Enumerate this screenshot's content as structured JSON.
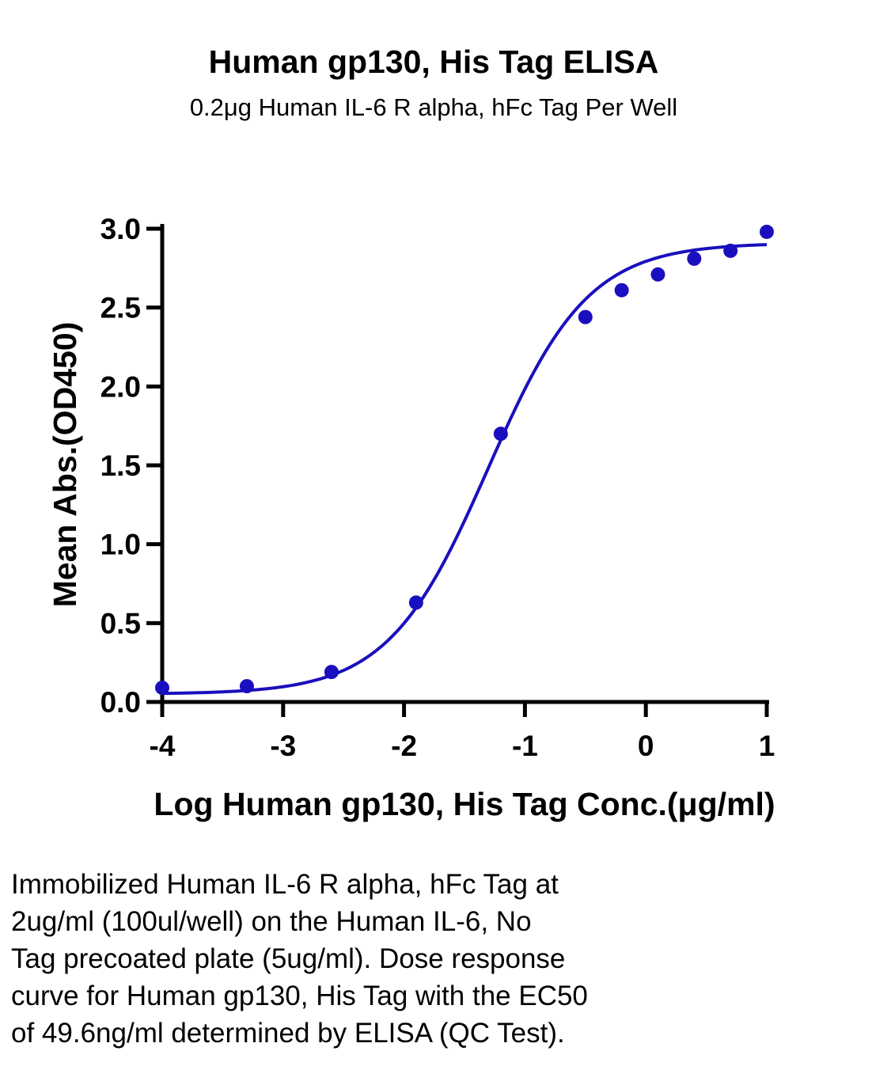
{
  "chart_data": {
    "type": "scatter",
    "title": "Human gp130, His Tag ELISA",
    "subtitle": "0.2μg Human IL-6 R alpha, hFc Tag Per Well",
    "xlabel": "Log Human gp130, His Tag Conc.(μg/ml)",
    "ylabel": "Mean Abs.(OD450)",
    "xlim": [
      -4,
      1
    ],
    "ylim": [
      0,
      3
    ],
    "xticks": [
      -4,
      -3,
      -2,
      -1,
      0,
      1
    ],
    "xtick_labels": [
      "-4",
      "-3",
      "-2",
      "-1",
      "0",
      "1"
    ],
    "yticks": [
      0,
      0.5,
      1,
      1.5,
      2,
      2.5,
      3
    ],
    "ytick_labels": [
      "0.0",
      "0.5",
      "1.0",
      "1.5",
      "2.0",
      "2.5",
      "3.0"
    ],
    "grid": false,
    "color": "#1a0fbe",
    "points": {
      "x": [
        -4.0,
        -3.3,
        -2.6,
        -1.9,
        -1.2,
        -0.5,
        -0.2,
        0.1,
        0.4,
        0.7,
        1.0
      ],
      "y": [
        0.09,
        0.1,
        0.19,
        0.63,
        1.7,
        2.44,
        2.61,
        2.71,
        2.81,
        2.86,
        2.98
      ]
    },
    "fit_curve": {
      "model": "4PL",
      "bottom": 0.05,
      "top": 2.91,
      "log_ec50": -1.3045,
      "hill": 1.05
    }
  },
  "caption": "Immobilized Human IL-6 R alpha, hFc Tag at\n2ug/ml (100ul/well) on the Human IL-6, No\nTag precoated plate (5ug/ml). Dose response\ncurve for Human gp130, His Tag with the EC50\nof 49.6ng/ml determined by ELISA (QC Test)."
}
